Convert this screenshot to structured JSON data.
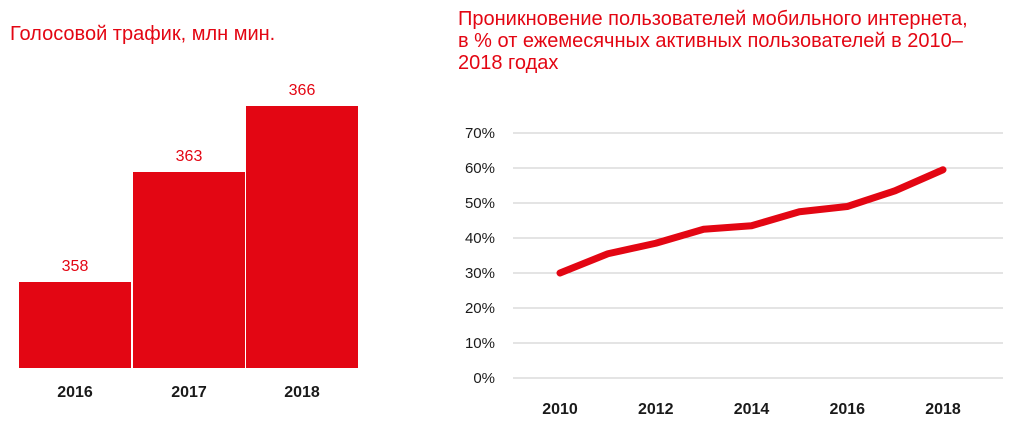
{
  "chart_data": [
    {
      "type": "bar",
      "title": "Голосовой трафик, млн мин.",
      "categories": [
        "2016",
        "2017",
        "2018"
      ],
      "values": [
        358,
        363,
        366
      ],
      "data_labels": [
        "358",
        "363",
        "366"
      ],
      "color": "#e30613"
    },
    {
      "type": "line",
      "title": "Проникновение пользователей мобильного интернета, в % от ежемесячных активных пользователей в 2010–2018 годах",
      "x": [
        2010,
        2011,
        2012,
        2013,
        2014,
        2015,
        2016,
        2017,
        2018
      ],
      "y": [
        30,
        35.5,
        38.5,
        42.5,
        43.5,
        47.5,
        49,
        53.5,
        59.5
      ],
      "x_tick_labels": [
        "2010",
        "2012",
        "2014",
        "2016",
        "2018"
      ],
      "x_tick_values": [
        2010,
        2012,
        2014,
        2016,
        2018
      ],
      "y_tick_labels": [
        "0%",
        "10%",
        "20%",
        "30%",
        "40%",
        "50%",
        "60%",
        "70%"
      ],
      "y_tick_values": [
        0,
        10,
        20,
        30,
        40,
        50,
        60,
        70
      ],
      "ylim": [
        0,
        70
      ],
      "grid": true,
      "color": "#e30613"
    }
  ]
}
